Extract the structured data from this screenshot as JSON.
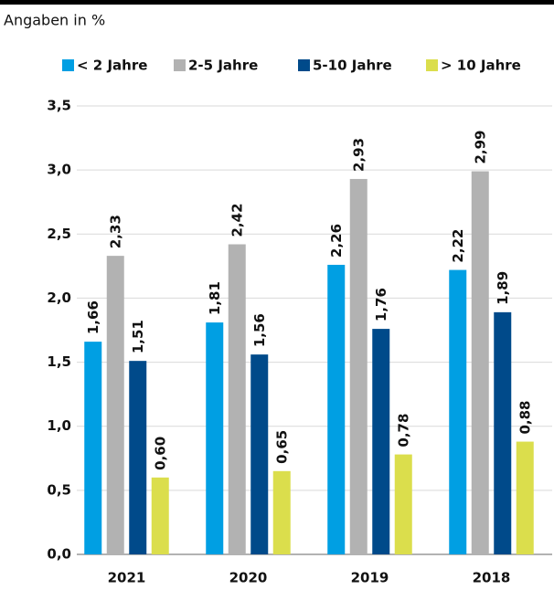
{
  "chart_data": {
    "type": "bar",
    "subtitle": "Angaben in %",
    "categories": [
      "2021",
      "2020",
      "2019",
      "2018"
    ],
    "series": [
      {
        "name": "< 2 Jahre",
        "color": "#009fe3",
        "values": [
          1.66,
          1.81,
          2.26,
          2.22
        ],
        "value_labels": [
          "1,66",
          "1,81",
          "2,26",
          "2,22"
        ]
      },
      {
        "name": "2-5 Jahre",
        "color": "#b2b2b2",
        "values": [
          2.33,
          2.42,
          2.93,
          2.99
        ],
        "value_labels": [
          "2,33",
          "2,42",
          "2,93",
          "2,99"
        ]
      },
      {
        "name": "5-10 Jahre",
        "color": "#004a8a",
        "values": [
          1.51,
          1.56,
          1.76,
          1.89
        ],
        "value_labels": [
          "1,51",
          "1,56",
          "1,76",
          "1,89"
        ]
      },
      {
        "name": "> 10 Jahre",
        "color": "#dbde4c",
        "values": [
          0.6,
          0.65,
          0.78,
          0.88
        ],
        "value_labels": [
          "0,60",
          "0,65",
          "0,78",
          "0,88"
        ]
      }
    ],
    "ylim": [
      0,
      3.5
    ],
    "yticks": [
      {
        "value": 0,
        "label": "0,0"
      },
      {
        "value": 0.5,
        "label": "0,5"
      },
      {
        "value": 1,
        "label": "1,0"
      },
      {
        "value": 1.5,
        "label": "1,5"
      },
      {
        "value": 2,
        "label": "2,0"
      },
      {
        "value": 2.5,
        "label": "2,5"
      },
      {
        "value": 3,
        "label": "3,0"
      },
      {
        "value": 3.5,
        "label": "3,5"
      }
    ],
    "grid": true,
    "legend": "top"
  }
}
